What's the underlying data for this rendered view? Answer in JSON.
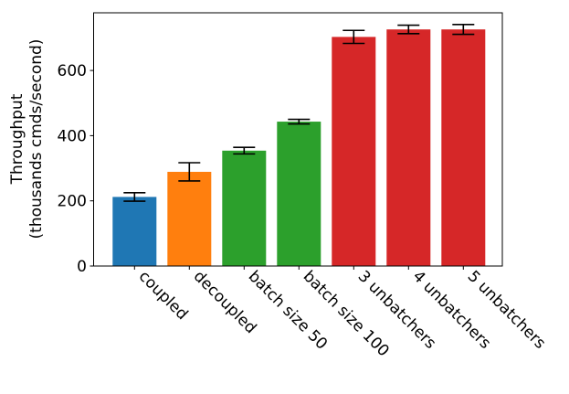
{
  "chart_data": {
    "type": "bar",
    "title": "",
    "xlabel": "",
    "ylabel": "Throughput",
    "ylabel_line2": "(thousands cmds/second)",
    "ylim": [
      0,
      775
    ],
    "yticks": [
      0,
      200,
      400,
      600
    ],
    "categories": [
      "coupled",
      "decoupled",
      "batch size 50",
      "batch size 100",
      "3 unbatchers",
      "4 unbatchers",
      "5 unbatchers"
    ],
    "values": [
      212,
      289,
      354,
      443,
      703,
      726,
      726
    ],
    "errors": [
      13,
      28,
      10,
      7,
      20,
      13,
      15
    ],
    "colors": [
      "#1f77b4",
      "#ff7f0e",
      "#2ca02c",
      "#2ca02c",
      "#d62728",
      "#d62728",
      "#d62728"
    ],
    "grid": false
  }
}
